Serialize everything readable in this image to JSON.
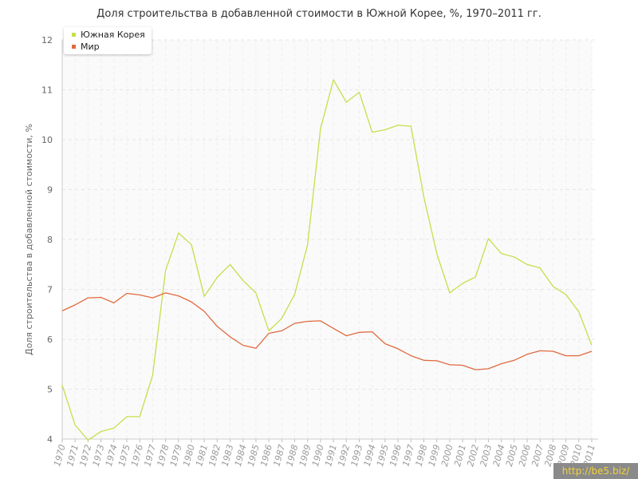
{
  "title": "Доля строительства в добавленной стоимости в Южной Корее, %, 1970–2011 гг.",
  "watermark": "http://be5.biz/",
  "colors": {
    "korea": "#c5df4a",
    "world": "#e06a3e"
  },
  "chart_data": {
    "type": "line",
    "title": "Доля строительства в добавленной стоимости в Южной Корее, %, 1970–2011 гг.",
    "xlabel": "",
    "ylabel": "Доля строительства в добавленной стоимости, %",
    "ylim": [
      4,
      12
    ],
    "yticks": [
      4,
      5,
      6,
      7,
      8,
      9,
      10,
      11,
      12
    ],
    "grid": true,
    "legend_position": "top-left",
    "x": [
      "1970",
      "1971",
      "1972",
      "1973",
      "1974",
      "1975",
      "1976",
      "1977",
      "1978",
      "1979",
      "1980",
      "1981",
      "1982",
      "1983",
      "1984",
      "1985",
      "1986",
      "1987",
      "1988",
      "1989",
      "1990",
      "1991",
      "1992",
      "1993",
      "1994",
      "1995",
      "1996",
      "1997",
      "1998",
      "1999",
      "2000",
      "2001",
      "2002",
      "2003",
      "2004",
      "2005",
      "2006",
      "2007",
      "2008",
      "2009",
      "2010",
      "2011"
    ],
    "series": [
      {
        "name": "Южная Корея",
        "values": [
          5.08,
          4.28,
          3.98,
          4.15,
          4.22,
          4.45,
          4.45,
          5.28,
          7.38,
          8.13,
          7.9,
          6.86,
          7.24,
          7.5,
          7.18,
          6.93,
          6.17,
          6.42,
          6.9,
          7.9,
          10.22,
          11.2,
          10.75,
          10.95,
          10.15,
          10.2,
          10.29,
          10.27,
          8.85,
          7.72,
          6.93,
          7.12,
          7.25,
          8.02,
          7.72,
          7.65,
          7.5,
          7.43,
          7.06,
          6.9,
          6.55,
          5.88
        ]
      },
      {
        "name": "Мир",
        "values": [
          6.57,
          6.69,
          6.83,
          6.84,
          6.73,
          6.92,
          6.89,
          6.83,
          6.93,
          6.87,
          6.75,
          6.56,
          6.26,
          6.05,
          5.88,
          5.82,
          6.12,
          6.17,
          6.32,
          6.36,
          6.37,
          6.22,
          6.07,
          6.14,
          6.15,
          5.91,
          5.81,
          5.67,
          5.58,
          5.57,
          5.49,
          5.48,
          5.39,
          5.41,
          5.51,
          5.58,
          5.7,
          5.77,
          5.76,
          5.67,
          5.67,
          5.76
        ]
      }
    ]
  }
}
